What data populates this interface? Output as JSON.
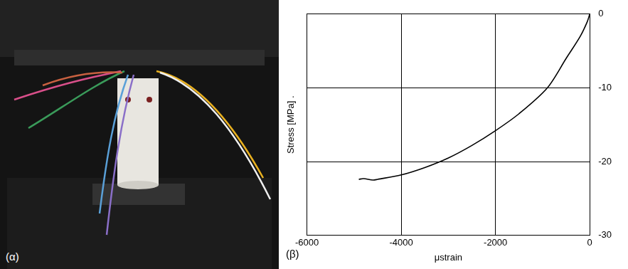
{
  "photo_panel": {
    "label": "(α)"
  },
  "chart_data": {
    "type": "line",
    "annotations": [
      "(β)"
    ],
    "x_label": "μstrain",
    "y_label": "Stress [MPa] .",
    "x": [
      0,
      -50,
      -200,
      -500,
      -900,
      -1500,
      -2000,
      -2500,
      -3000,
      -3500,
      -4000,
      -4500,
      -4600,
      -4800,
      -4900
    ],
    "values": [
      0,
      -1,
      -3,
      -6,
      -10,
      -13.5,
      -15.8,
      -17.8,
      -19.5,
      -20.8,
      -21.8,
      -22.4,
      -22.5,
      -22.3,
      -22.4
    ],
    "color": "#000000",
    "xlim": [
      -6000,
      0
    ],
    "xticks": [
      -6000,
      -4000,
      -2000,
      0
    ],
    "ylim": [
      -30,
      0
    ],
    "yticks": [
      -30,
      -20,
      -10,
      0
    ],
    "grid": true
  }
}
